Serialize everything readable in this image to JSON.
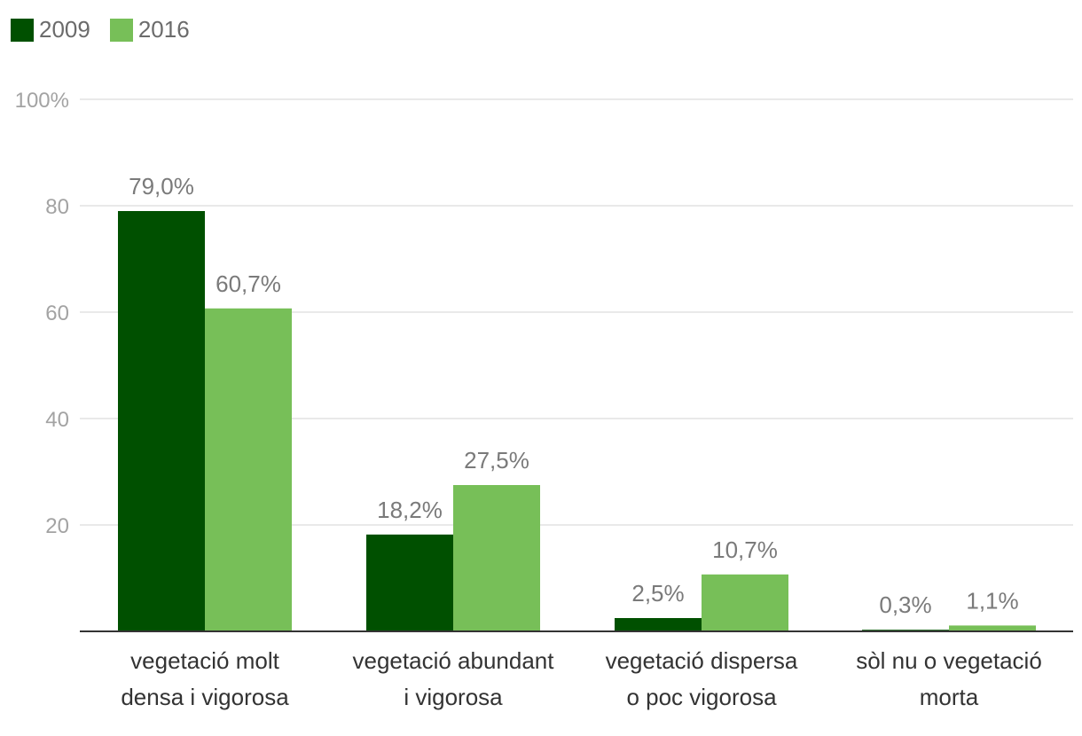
{
  "chart_data": {
    "type": "bar",
    "categories": [
      [
        "vegetació molt",
        "densa i vigorosa"
      ],
      [
        "vegetació abundant",
        "i vigorosa"
      ],
      [
        "vegetació dispersa",
        "o poc vigorosa"
      ],
      [
        "sòl nu o vegetació",
        "morta"
      ]
    ],
    "series": [
      {
        "name": "2009",
        "values": [
          79.0,
          18.2,
          2.5,
          0.3
        ],
        "labels": [
          "79,0%",
          "18,2%",
          "2,5%",
          "0,3%"
        ],
        "color": "#005000"
      },
      {
        "name": "2016",
        "values": [
          60.7,
          27.5,
          10.7,
          1.1
        ],
        "labels": [
          "60,7%",
          "27,5%",
          "10,7%",
          "1,1%"
        ],
        "color": "#77bf58"
      }
    ],
    "yticks": [
      {
        "value": 20,
        "label": "20"
      },
      {
        "value": 40,
        "label": "40"
      },
      {
        "value": 60,
        "label": "60"
      },
      {
        "value": 80,
        "label": "80"
      },
      {
        "value": 100,
        "label": "100%"
      }
    ],
    "ylim": [
      0,
      100
    ],
    "legend_position": "top-left",
    "grid": true,
    "title": "",
    "xlabel": "",
    "ylabel": ""
  },
  "colors": {
    "grid": "#e2e2e2",
    "axis": "#333333"
  }
}
